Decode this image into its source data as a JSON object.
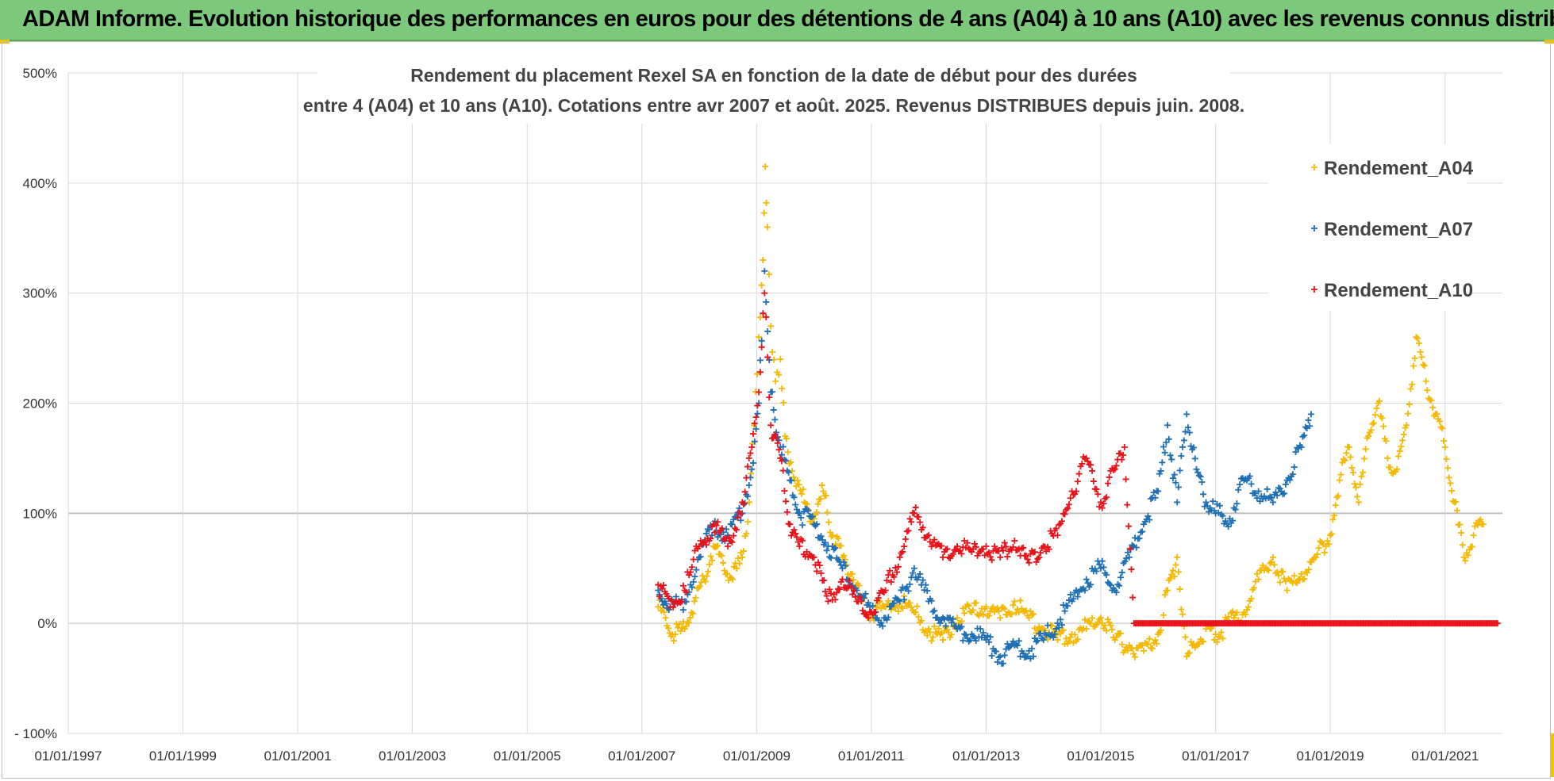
{
  "banner": {
    "title": "ADAM Informe. Evolution historique des performances en euros pour des détentions de 4 ans (A04) à 10 ans (A10) avec les revenus connus distribués"
  },
  "colors": {
    "banner_bg": "#7dc97c",
    "A04": "#f5b800",
    "A07": "#1f6fb4",
    "A10": "#e8121b",
    "grid": "#d9d9d9"
  },
  "chart_data": {
    "type": "scatter",
    "title_line1": "Rendement du placement Rexel SA en fonction de la date de début pour des durées",
    "title_line2": "entre 4 (A04) et 10 ans (A10). Cotations entre avr 2007 et août. 2025. Revenus DISTRIBUES depuis juin. 2008.",
    "xlabel": "",
    "ylabel": "",
    "x_ticks": [
      "01/01/1997",
      "01/01/1999",
      "01/01/2001",
      "01/01/2003",
      "01/01/2005",
      "01/01/2007",
      "01/01/2009",
      "01/01/2011",
      "01/01/2013",
      "01/01/2015",
      "01/01/2017",
      "01/01/2019",
      "01/01/2021"
    ],
    "y_ticks": [
      "500%",
      "400%",
      "300%",
      "200%",
      "100%",
      "0%",
      "- 100%"
    ],
    "xlim": [
      "1997-01-01",
      "2022-01-01"
    ],
    "ylim": [
      -100,
      500
    ],
    "y_unit": "%",
    "grid": true,
    "legend_position": "top-right",
    "marker": "+",
    "series": [
      {
        "name": "Rendement_A04",
        "color": "#f5b800",
        "points": [
          [
            "2007-04-15",
            15
          ],
          [
            "2007-06-01",
            5
          ],
          [
            "2007-08-01",
            -10
          ],
          [
            "2007-10-01",
            -5
          ],
          [
            "2007-12-01",
            20
          ],
          [
            "2008-02-01",
            40
          ],
          [
            "2008-04-01",
            70
          ],
          [
            "2008-06-01",
            55
          ],
          [
            "2008-08-01",
            40
          ],
          [
            "2008-10-01",
            60
          ],
          [
            "2008-11-15",
            110
          ],
          [
            "2008-12-15",
            180
          ],
          [
            "2009-01-15",
            260
          ],
          [
            "2009-02-10",
            330
          ],
          [
            "2009-02-25",
            415
          ],
          [
            "2009-03-10",
            360
          ],
          [
            "2009-04-01",
            270
          ],
          [
            "2009-05-01",
            220
          ],
          [
            "2009-06-01",
            240
          ],
          [
            "2009-07-01",
            170
          ],
          [
            "2009-09-01",
            130
          ],
          [
            "2009-11-01",
            110
          ],
          [
            "2010-01-01",
            95
          ],
          [
            "2010-03-01",
            120
          ],
          [
            "2010-05-01",
            80
          ],
          [
            "2010-07-01",
            60
          ],
          [
            "2010-09-01",
            45
          ],
          [
            "2010-11-01",
            20
          ],
          [
            "2011-01-01",
            10
          ],
          [
            "2011-04-01",
            15
          ],
          [
            "2011-07-01",
            20
          ],
          [
            "2011-10-01",
            10
          ],
          [
            "2012-01-01",
            -5
          ],
          [
            "2012-04-01",
            -15
          ],
          [
            "2012-07-01",
            5
          ],
          [
            "2012-10-01",
            10
          ],
          [
            "2013-01-01",
            15
          ],
          [
            "2013-04-01",
            5
          ],
          [
            "2013-07-01",
            20
          ],
          [
            "2013-10-01",
            5
          ],
          [
            "2014-01-01",
            -5
          ],
          [
            "2014-04-01",
            -15
          ],
          [
            "2014-07-01",
            -10
          ],
          [
            "2014-10-01",
            -5
          ],
          [
            "2015-01-01",
            5
          ],
          [
            "2015-04-01",
            -15
          ],
          [
            "2015-07-01",
            -20
          ],
          [
            "2015-10-01",
            -25
          ],
          [
            "2016-01-01",
            -10
          ],
          [
            "2016-03-01",
            30
          ],
          [
            "2016-05-01",
            60
          ],
          [
            "2016-07-01",
            -30
          ],
          [
            "2016-09-01",
            -20
          ],
          [
            "2016-11-01",
            -5
          ],
          [
            "2017-01-01",
            -10
          ],
          [
            "2017-04-01",
            0
          ],
          [
            "2017-07-01",
            10
          ],
          [
            "2017-10-01",
            40
          ],
          [
            "2018-01-01",
            60
          ],
          [
            "2018-04-01",
            30
          ],
          [
            "2018-07-01",
            45
          ],
          [
            "2018-10-01",
            60
          ],
          [
            "2019-01-01",
            80
          ],
          [
            "2019-03-01",
            130
          ],
          [
            "2019-05-01",
            160
          ],
          [
            "2019-07-01",
            110
          ],
          [
            "2019-09-01",
            170
          ],
          [
            "2019-11-01",
            200
          ],
          [
            "2020-01-01",
            150
          ],
          [
            "2020-03-01",
            140
          ],
          [
            "2020-05-01",
            180
          ],
          [
            "2020-07-01",
            260
          ],
          [
            "2020-09-01",
            220
          ],
          [
            "2020-11-01",
            190
          ],
          [
            "2021-01-01",
            160
          ],
          [
            "2021-03-01",
            110
          ],
          [
            "2021-05-01",
            60
          ],
          [
            "2021-07-01",
            80
          ],
          [
            "2021-09-01",
            90
          ]
        ]
      },
      {
        "name": "Rendement_A07",
        "color": "#1f6fb4",
        "points": [
          [
            "2007-04-15",
            30
          ],
          [
            "2007-07-01",
            15
          ],
          [
            "2007-10-01",
            20
          ],
          [
            "2008-01-01",
            60
          ],
          [
            "2008-04-01",
            90
          ],
          [
            "2008-07-01",
            80
          ],
          [
            "2008-10-01",
            100
          ],
          [
            "2008-12-01",
            140
          ],
          [
            "2009-01-15",
            200
          ],
          [
            "2009-02-20",
            320
          ],
          [
            "2009-04-01",
            210
          ],
          [
            "2009-06-01",
            160
          ],
          [
            "2009-08-01",
            130
          ],
          [
            "2009-10-01",
            100
          ],
          [
            "2010-01-01",
            90
          ],
          [
            "2010-04-01",
            70
          ],
          [
            "2010-07-01",
            50
          ],
          [
            "2010-10-01",
            30
          ],
          [
            "2011-01-01",
            10
          ],
          [
            "2011-04-01",
            5
          ],
          [
            "2011-07-01",
            20
          ],
          [
            "2011-10-01",
            50
          ],
          [
            "2012-01-01",
            20
          ],
          [
            "2012-04-01",
            5
          ],
          [
            "2012-07-01",
            -5
          ],
          [
            "2012-10-01",
            -10
          ],
          [
            "2013-01-01",
            -15
          ],
          [
            "2013-04-01",
            -30
          ],
          [
            "2013-07-01",
            -20
          ],
          [
            "2013-10-01",
            -25
          ],
          [
            "2014-01-01",
            -15
          ],
          [
            "2014-04-01",
            0
          ],
          [
            "2014-07-01",
            20
          ],
          [
            "2014-10-01",
            40
          ],
          [
            "2015-01-01",
            50
          ],
          [
            "2015-04-01",
            30
          ],
          [
            "2015-07-01",
            60
          ],
          [
            "2015-10-01",
            90
          ],
          [
            "2016-01-01",
            120
          ],
          [
            "2016-03-01",
            180
          ],
          [
            "2016-05-01",
            110
          ],
          [
            "2016-07-01",
            190
          ],
          [
            "2016-09-01",
            140
          ],
          [
            "2016-11-01",
            110
          ],
          [
            "2017-01-01",
            100
          ],
          [
            "2017-04-01",
            95
          ],
          [
            "2017-07-01",
            130
          ],
          [
            "2017-10-01",
            120
          ],
          [
            "2018-01-01",
            110
          ],
          [
            "2018-04-01",
            130
          ],
          [
            "2018-07-01",
            160
          ],
          [
            "2018-09-01",
            190
          ]
        ]
      },
      {
        "name": "Rendement_A10",
        "color": "#e8121b",
        "points": [
          [
            "2007-04-15",
            35
          ],
          [
            "2007-07-01",
            15
          ],
          [
            "2007-10-01",
            30
          ],
          [
            "2008-01-01",
            70
          ],
          [
            "2008-04-01",
            90
          ],
          [
            "2008-07-01",
            70
          ],
          [
            "2008-10-01",
            110
          ],
          [
            "2008-12-01",
            160
          ],
          [
            "2009-01-15",
            210
          ],
          [
            "2009-02-20",
            300
          ],
          [
            "2009-04-01",
            180
          ],
          [
            "2009-06-01",
            150
          ],
          [
            "2009-08-01",
            90
          ],
          [
            "2009-10-01",
            70
          ],
          [
            "2010-01-01",
            60
          ],
          [
            "2010-04-01",
            20
          ],
          [
            "2010-07-01",
            40
          ],
          [
            "2010-10-01",
            20
          ],
          [
            "2011-01-01",
            10
          ],
          [
            "2011-04-01",
            30
          ],
          [
            "2011-07-01",
            60
          ],
          [
            "2011-10-01",
            100
          ],
          [
            "2012-01-01",
            80
          ],
          [
            "2012-04-01",
            60
          ],
          [
            "2012-07-01",
            70
          ],
          [
            "2012-10-01",
            65
          ],
          [
            "2013-01-01",
            70
          ],
          [
            "2013-04-01",
            60
          ],
          [
            "2013-07-01",
            75
          ],
          [
            "2013-10-01",
            55
          ],
          [
            "2014-01-01",
            70
          ],
          [
            "2014-04-01",
            80
          ],
          [
            "2014-07-01",
            120
          ],
          [
            "2014-10-01",
            150
          ],
          [
            "2015-01-01",
            110
          ],
          [
            "2015-04-01",
            140
          ],
          [
            "2015-06-01",
            160
          ],
          [
            "2015-08-01",
            0
          ],
          [
            "2016-01-01",
            0
          ],
          [
            "2017-01-01",
            0
          ],
          [
            "2018-01-01",
            0
          ],
          [
            "2019-01-01",
            0
          ],
          [
            "2020-01-01",
            0
          ],
          [
            "2021-01-01",
            0
          ],
          [
            "2021-12-01",
            0
          ]
        ]
      }
    ]
  }
}
